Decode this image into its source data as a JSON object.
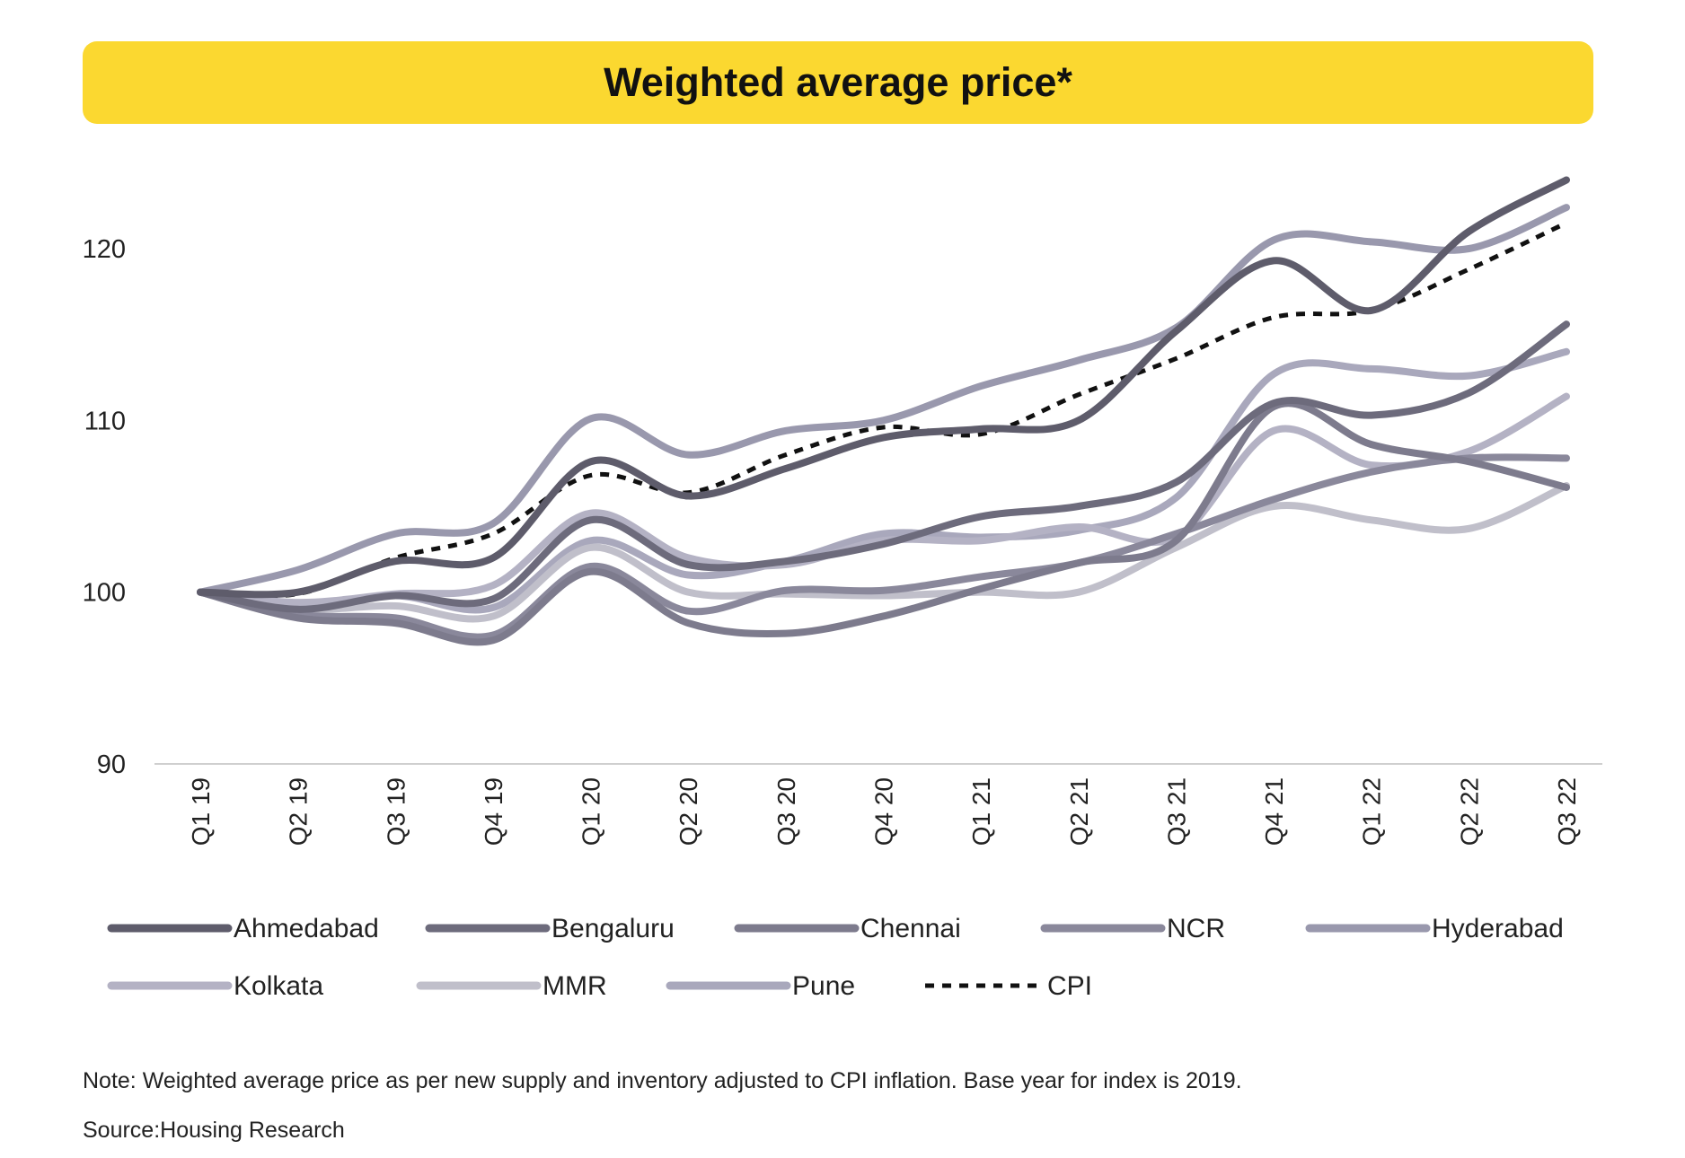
{
  "title": "Weighted average price*",
  "note": "Note: Weighted average price as per new supply and inventory adjusted to CPI inflation. Base year for index is 2019.",
  "source": "Source:Housing Research",
  "chart_data": {
    "type": "line",
    "title": "Weighted average price*",
    "xlabel": "",
    "ylabel": "",
    "ylim": [
      90,
      125
    ],
    "yticks": [
      90,
      100,
      110,
      120
    ],
    "grid": false,
    "legend_position": "bottom",
    "categories": [
      "Q1 19",
      "Q2 19",
      "Q3 19",
      "Q4 19",
      "Q1 20",
      "Q2 20",
      "Q3 20",
      "Q4 20",
      "Q1 21",
      "Q2 21",
      "Q3 21",
      "Q4 21",
      "Q1 22",
      "Q2 22",
      "Q3 22"
    ],
    "series": [
      {
        "name": "Ahmedabad",
        "color": "#5e5c6b",
        "dash": false,
        "values": [
          100,
          100.0,
          101.8,
          102.0,
          107.6,
          105.6,
          107.2,
          109.0,
          109.5,
          110.0,
          115.2,
          119.3,
          116.4,
          121.0,
          124.0
        ]
      },
      {
        "name": "Bengaluru",
        "color": "#6d6b7c",
        "dash": false,
        "values": [
          100,
          99.0,
          99.8,
          99.6,
          104.2,
          101.6,
          101.8,
          102.8,
          104.4,
          105.0,
          106.4,
          111.0,
          110.3,
          111.6,
          115.6
        ]
      },
      {
        "name": "Chennai",
        "color": "#7d7b8d",
        "dash": false,
        "values": [
          100,
          98.5,
          98.2,
          97.2,
          101.2,
          98.2,
          97.6,
          98.6,
          100.2,
          101.7,
          103.0,
          110.8,
          108.6,
          107.6,
          106.1
        ]
      },
      {
        "name": "NCR",
        "color": "#8a889b",
        "dash": false,
        "values": [
          100,
          98.7,
          98.5,
          97.5,
          101.5,
          98.9,
          100.1,
          100.1,
          100.9,
          101.7,
          103.4,
          105.4,
          107.0,
          107.8,
          107.8
        ]
      },
      {
        "name": "Hyderabad",
        "color": "#9998ad",
        "dash": false,
        "values": [
          100,
          101.3,
          103.4,
          104.0,
          110.1,
          108.0,
          109.4,
          110.0,
          112.0,
          113.5,
          115.4,
          120.5,
          120.4,
          120.0,
          122.4
        ]
      },
      {
        "name": "Kolkata",
        "color": "#b4b2c4",
        "dash": false,
        "values": [
          100,
          99.4,
          99.9,
          100.4,
          104.6,
          102.0,
          101.6,
          103.0,
          103.0,
          103.8,
          103.2,
          109.4,
          107.4,
          108.2,
          111.4
        ]
      },
      {
        "name": "MMR",
        "color": "#c0bfca",
        "dash": false,
        "values": [
          100,
          99.0,
          99.2,
          98.6,
          102.6,
          100.0,
          99.9,
          99.8,
          100.0,
          100.0,
          102.6,
          105.0,
          104.2,
          103.7,
          106.2
        ]
      },
      {
        "name": "Pune",
        "color": "#a9a8bc",
        "dash": false,
        "values": [
          100,
          99.3,
          99.8,
          99.1,
          103.0,
          101.0,
          101.8,
          103.4,
          103.2,
          103.6,
          105.5,
          112.7,
          113.0,
          112.6,
          114.0
        ]
      },
      {
        "name": "CPI",
        "color": "#111111",
        "dash": true,
        "values": [
          100,
          99.9,
          102.0,
          103.4,
          106.8,
          105.8,
          108.0,
          109.6,
          109.2,
          111.5,
          113.6,
          116.0,
          116.4,
          118.8,
          121.5
        ]
      }
    ]
  }
}
